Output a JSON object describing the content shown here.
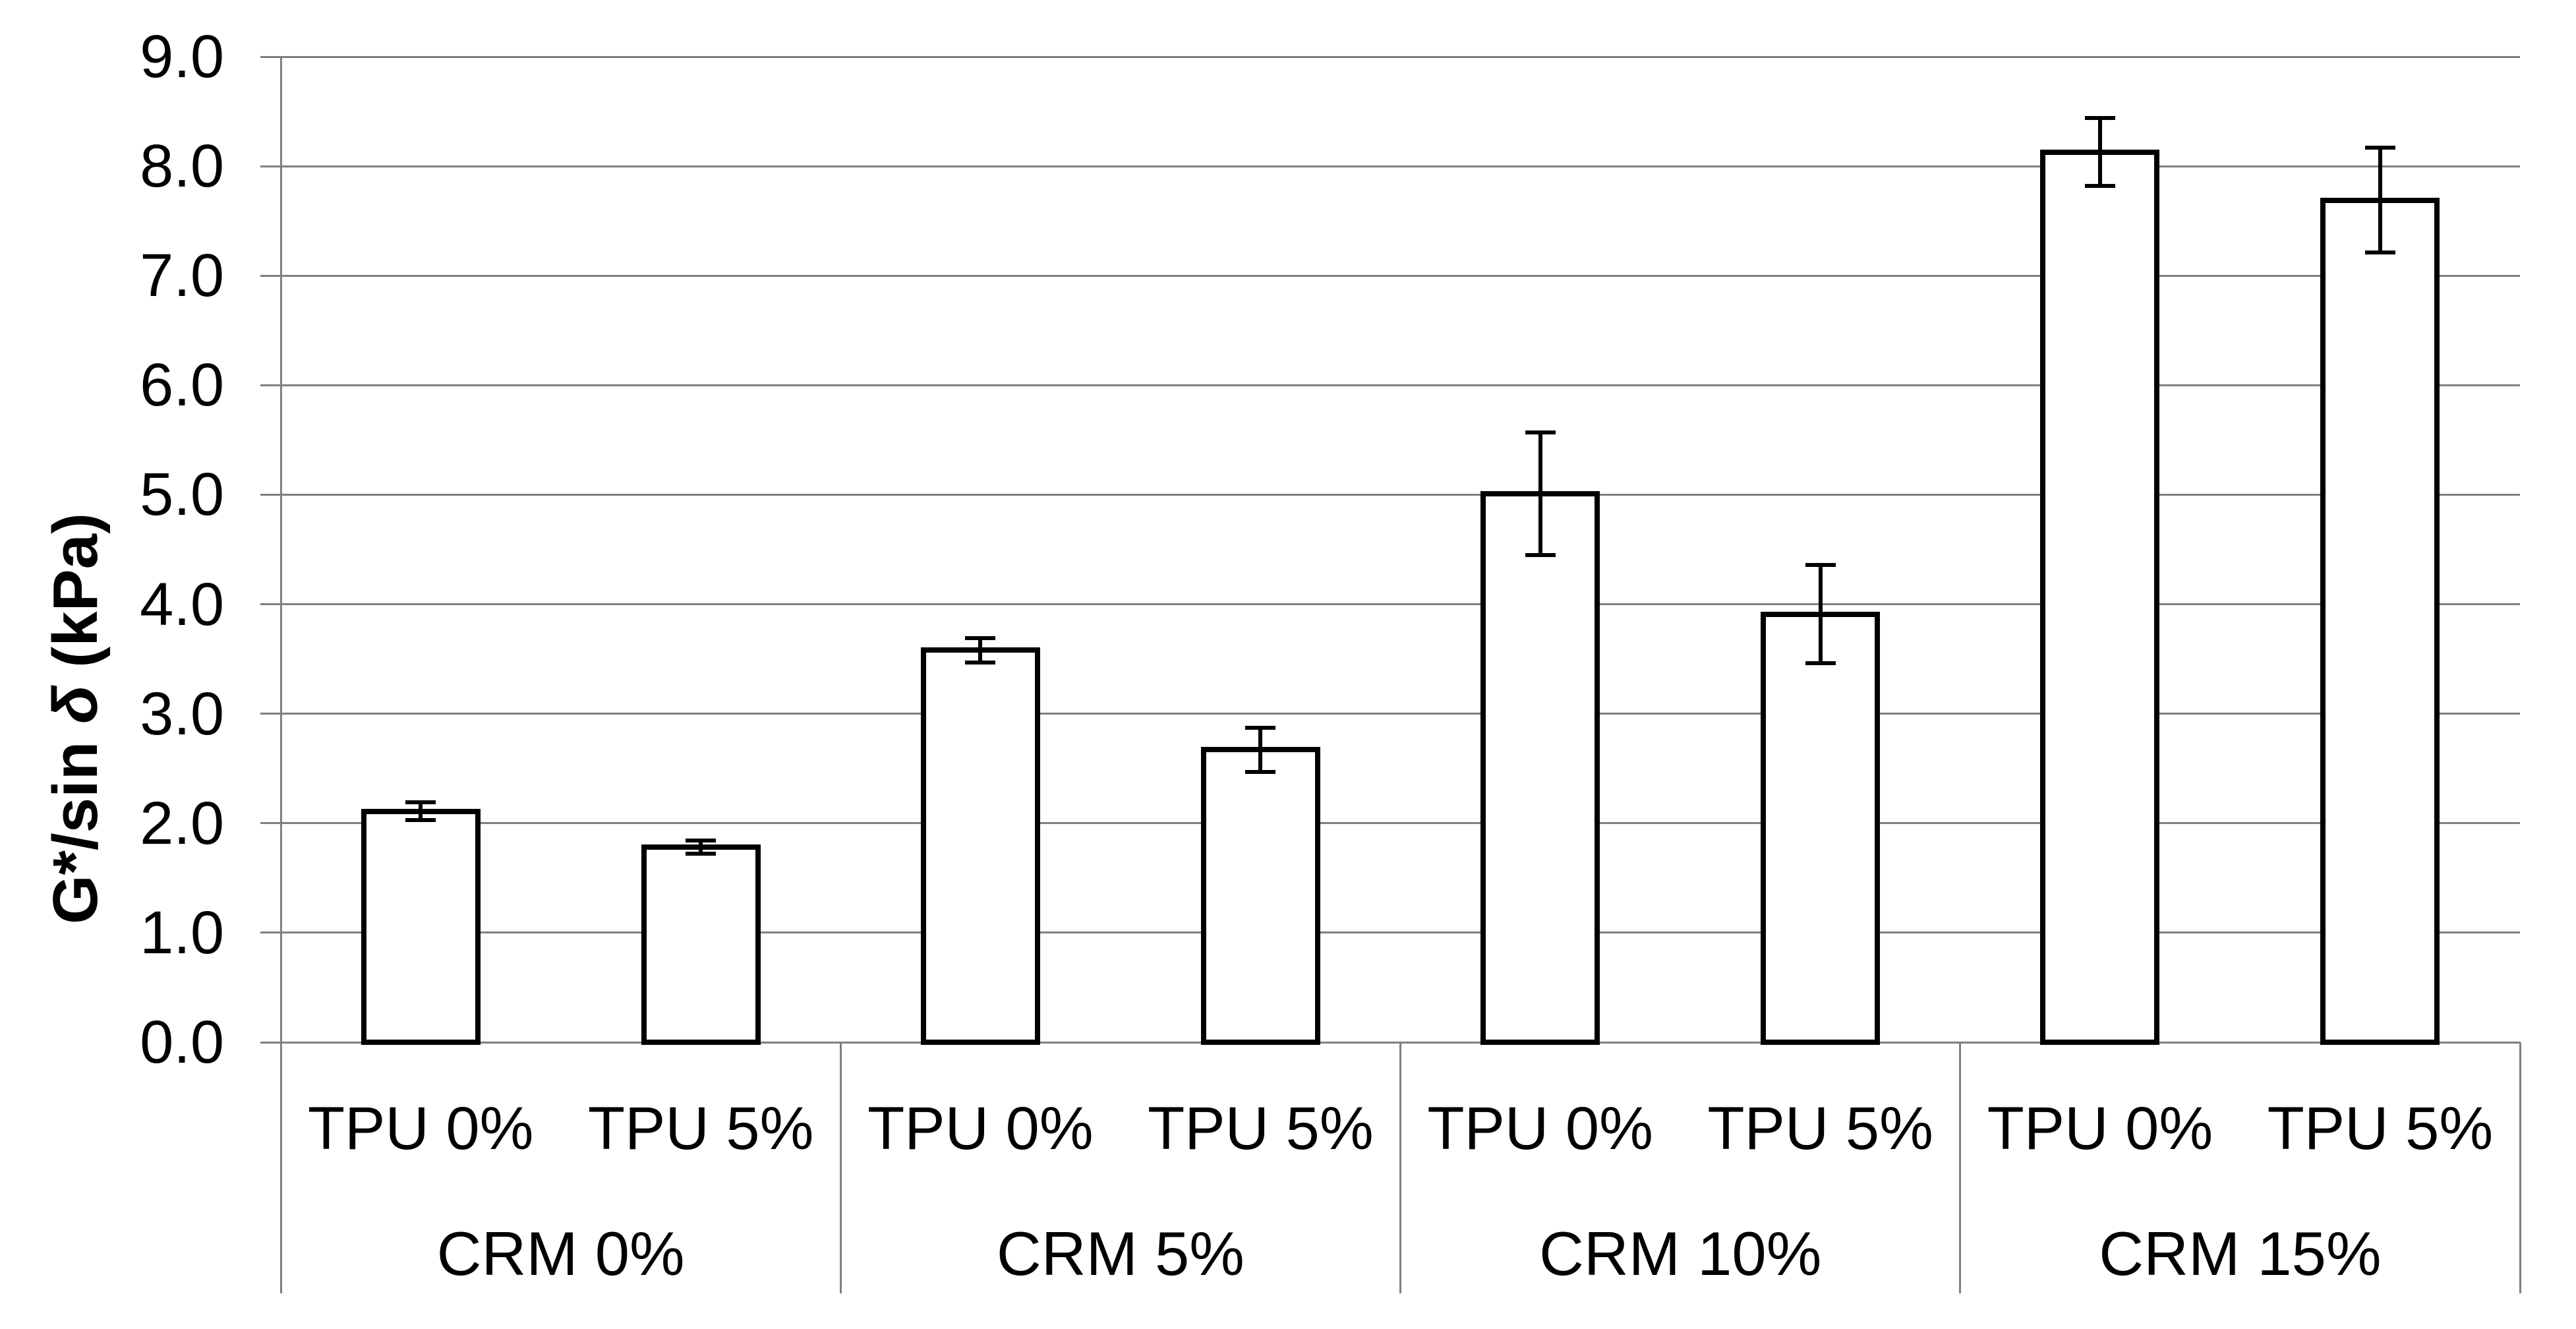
{
  "chart_data": {
    "type": "bar",
    "title": "",
    "xlabel": "",
    "ylabel": "G*/sin δ (kPa)",
    "ylabel_parts": {
      "prefix": "G*/sin ",
      "delta": "δ",
      "suffix": " (kPa)"
    },
    "ylim": [
      0.0,
      9.0
    ],
    "ytick_step": 1.0,
    "ytick_labels": [
      "0.0",
      "1.0",
      "2.0",
      "3.0",
      "4.0",
      "5.0",
      "6.0",
      "7.0",
      "8.0",
      "9.0"
    ],
    "grid": true,
    "legend_position": "none",
    "categories": [
      "CRM 0% | TPU 0%",
      "CRM 0% | TPU 5%",
      "CRM 5% | TPU 0%",
      "CRM 5% | TPU 5%",
      "CRM 10% | TPU 0%",
      "CRM 10% | TPU 5%",
      "CRM 15% | TPU 0%",
      "CRM 15% | TPU 5%"
    ],
    "series": [
      {
        "name": "G*/sin δ (kPa)",
        "values": [
          2.11,
          1.78,
          3.58,
          2.67,
          5.01,
          3.91,
          8.13,
          7.69
        ],
        "errors": [
          0.08,
          0.06,
          0.11,
          0.2,
          0.56,
          0.45,
          0.31,
          0.48
        ]
      }
    ],
    "groups": [
      {
        "label": "CRM 0%",
        "bars": [
          {
            "label": "TPU 0%",
            "value": 2.11,
            "error": 0.08
          },
          {
            "label": "TPU 5%",
            "value": 1.78,
            "error": 0.06
          }
        ]
      },
      {
        "label": "CRM 5%",
        "bars": [
          {
            "label": "TPU 0%",
            "value": 3.58,
            "error": 0.11
          },
          {
            "label": "TPU 5%",
            "value": 2.67,
            "error": 0.2
          }
        ]
      },
      {
        "label": "CRM 10%",
        "bars": [
          {
            "label": "TPU 0%",
            "value": 5.01,
            "error": 0.56
          },
          {
            "label": "TPU 5%",
            "value": 3.91,
            "error": 0.45
          }
        ]
      },
      {
        "label": "CRM 15%",
        "bars": [
          {
            "label": "TPU 0%",
            "value": 8.13,
            "error": 0.31
          },
          {
            "label": "TPU 5%",
            "value": 7.69,
            "error": 0.48
          }
        ]
      }
    ],
    "colors": {
      "bar_fill": "#ffffff",
      "bar_border": "#000000",
      "error_bar": "#000000",
      "gridline": "#7f7f7f",
      "axis_line": "#7f7f7f",
      "text": "#000000",
      "background": "#ffffff"
    }
  }
}
